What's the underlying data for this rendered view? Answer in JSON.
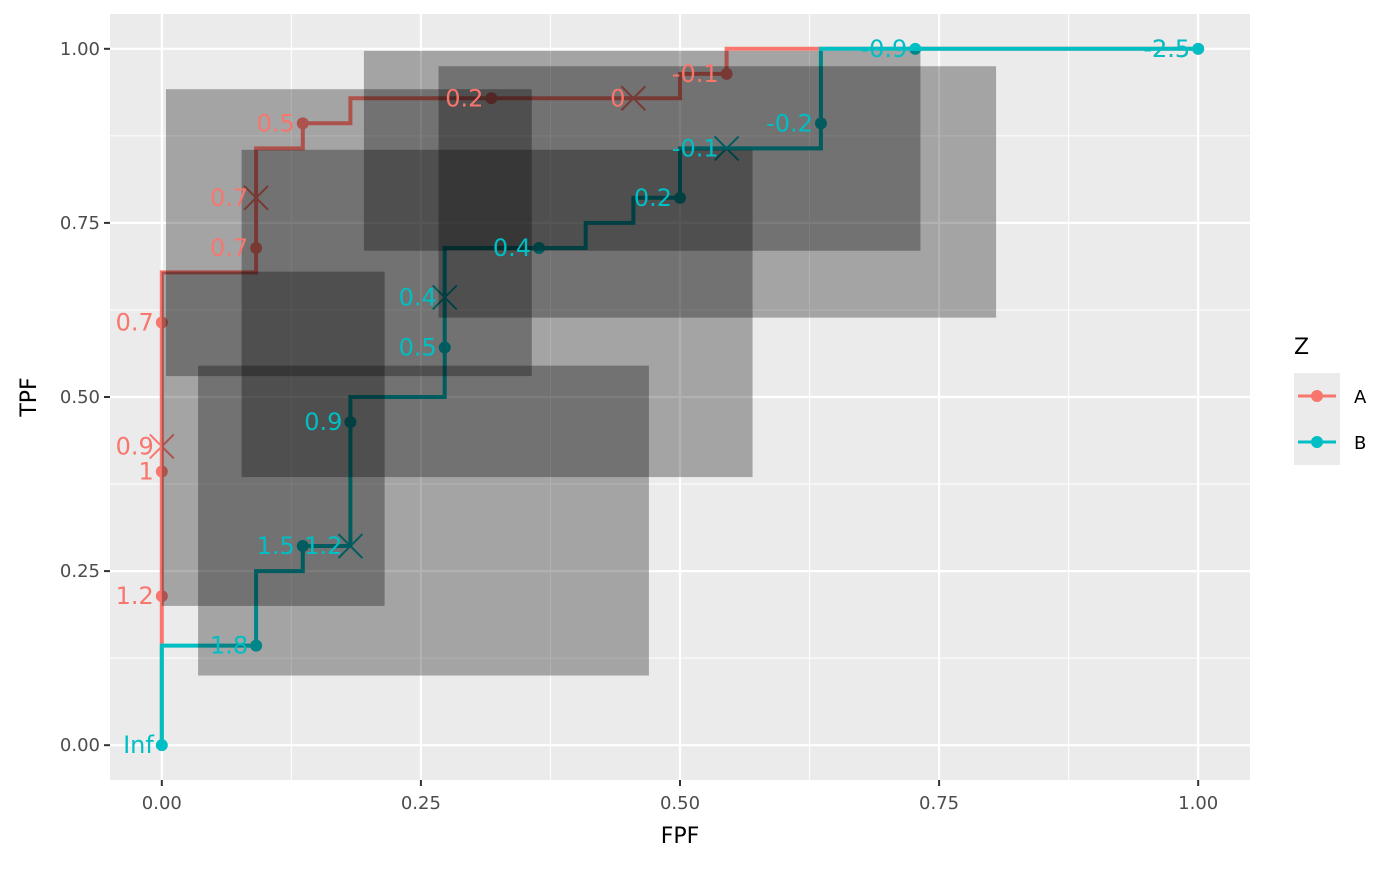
{
  "chart_data": {
    "type": "line",
    "xlabel": "FPF",
    "ylabel": "TPF",
    "xlim": [
      -0.05,
      1.05
    ],
    "ylim": [
      -0.05,
      1.05
    ],
    "x_ticks": [
      0,
      0.25,
      0.5,
      0.75,
      1
    ],
    "x_tick_labels": [
      "0.00",
      "0.25",
      "0.50",
      "0.75",
      "1.00"
    ],
    "y_ticks": [
      0,
      0.25,
      0.5,
      0.75,
      1
    ],
    "y_tick_labels": [
      "0.00",
      "0.25",
      "0.50",
      "0.75",
      "1.00"
    ],
    "grid": true,
    "legend_title": "Z",
    "legend_position": "right",
    "series": [
      {
        "name": "A",
        "color": "#F8766D",
        "steps": [
          [
            0,
            0
          ],
          [
            0,
            0.143
          ],
          [
            0,
            0.214
          ],
          [
            0,
            0.393
          ],
          [
            0,
            0.607
          ],
          [
            0,
            0.679
          ],
          [
            0.091,
            0.679
          ],
          [
            0.091,
            0.857
          ],
          [
            0.136,
            0.857
          ],
          [
            0.136,
            0.893
          ],
          [
            0.182,
            0.893
          ],
          [
            0.182,
            0.929
          ],
          [
            0.318,
            0.929
          ],
          [
            0.5,
            0.929
          ],
          [
            0.5,
            0.964
          ],
          [
            0.545,
            0.964
          ],
          [
            0.545,
            1
          ],
          [
            1,
            1
          ]
        ],
        "points": [
          {
            "x": 0,
            "y": 0.214,
            "label": "1.2"
          },
          {
            "x": 0,
            "y": 0.393,
            "label": "1"
          },
          {
            "x": 0,
            "y": 0.607,
            "label": "0.7"
          },
          {
            "x": 0.091,
            "y": 0.714,
            "label": "0.7"
          },
          {
            "x": 0.136,
            "y": 0.893,
            "label": "0.5"
          },
          {
            "x": 0.318,
            "y": 0.929,
            "label": "0.2"
          },
          {
            "x": 0.545,
            "y": 0.964,
            "label": "-0.1"
          },
          {
            "x": 1,
            "y": 1,
            "label": "-2.5"
          }
        ],
        "crosses": [
          {
            "x": 0,
            "y": 0.429,
            "label": "0.9"
          },
          {
            "x": 0.091,
            "y": 0.786,
            "label": "0.7"
          },
          {
            "x": 0.455,
            "y": 0.929,
            "label": "0"
          }
        ]
      },
      {
        "name": "B",
        "color": "#00BFC4",
        "steps": [
          [
            0,
            0
          ],
          [
            0,
            0.143
          ],
          [
            0.091,
            0.143
          ],
          [
            0.091,
            0.25
          ],
          [
            0.136,
            0.25
          ],
          [
            0.136,
            0.286
          ],
          [
            0.182,
            0.286
          ],
          [
            0.182,
            0.5
          ],
          [
            0.273,
            0.5
          ],
          [
            0.273,
            0.714
          ],
          [
            0.409,
            0.714
          ],
          [
            0.409,
            0.75
          ],
          [
            0.455,
            0.75
          ],
          [
            0.455,
            0.786
          ],
          [
            0.5,
            0.786
          ],
          [
            0.5,
            0.857
          ],
          [
            0.636,
            0.857
          ],
          [
            0.636,
            1
          ],
          [
            1,
            1
          ]
        ],
        "points": [
          {
            "x": 0,
            "y": 0,
            "label": "Inf"
          },
          {
            "x": 0.091,
            "y": 0.143,
            "label": "1.8"
          },
          {
            "x": 0.136,
            "y": 0.286,
            "label": "1.5"
          },
          {
            "x": 0.182,
            "y": 0.464,
            "label": "0.9"
          },
          {
            "x": 0.273,
            "y": 0.571,
            "label": "0.5"
          },
          {
            "x": 0.364,
            "y": 0.714,
            "label": "0.4"
          },
          {
            "x": 0.5,
            "y": 0.786,
            "label": "0.2"
          },
          {
            "x": 0.636,
            "y": 0.893,
            "label": "-0.2"
          },
          {
            "x": 0.727,
            "y": 1,
            "label": "-0.9"
          },
          {
            "x": 1,
            "y": 1,
            "label": "-2.5"
          }
        ],
        "crosses": [
          {
            "x": 0.182,
            "y": 0.286,
            "label": "1.2"
          },
          {
            "x": 0.273,
            "y": 0.643,
            "label": "0.4"
          },
          {
            "x": 0.545,
            "y": 0.857,
            "label": "-0.1"
          }
        ]
      }
    ],
    "confidence_regions": [
      {
        "x0": 0.0,
        "x1": 0.215,
        "y0": 0.2,
        "y1": 0.68
      },
      {
        "x0": 0.035,
        "x1": 0.47,
        "y0": 0.1,
        "y1": 0.545
      },
      {
        "x0": 0.077,
        "x1": 0.57,
        "y0": 0.385,
        "y1": 0.855
      },
      {
        "x0": 0.004,
        "x1": 0.357,
        "y0": 0.53,
        "y1": 0.942
      },
      {
        "x0": 0.195,
        "x1": 0.732,
        "y0": 0.71,
        "y1": 0.997
      },
      {
        "x0": 0.267,
        "x1": 0.805,
        "y0": 0.614,
        "y1": 0.975
      }
    ]
  }
}
